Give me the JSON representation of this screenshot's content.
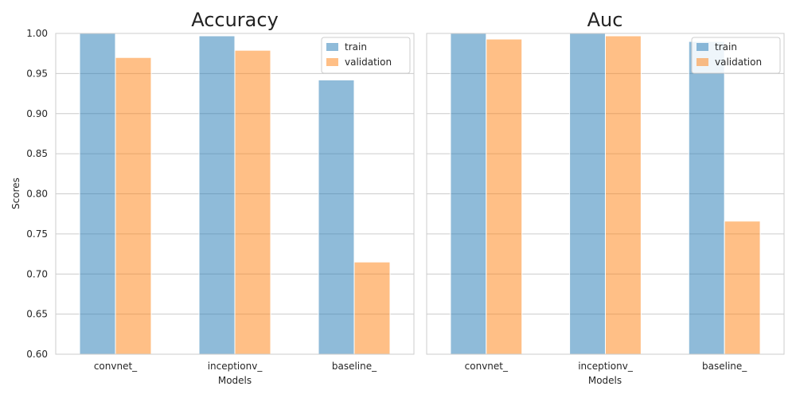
{
  "chart_data": [
    {
      "type": "bar",
      "title": "Accuracy",
      "xlabel": "Models",
      "ylabel": "Scores",
      "categories": [
        "convnet_",
        "inceptionv_",
        "baseline_"
      ],
      "ylim": [
        0.6,
        1.0
      ],
      "yticks": [
        "0.60",
        "0.65",
        "0.70",
        "0.75",
        "0.80",
        "0.85",
        "0.90",
        "0.95",
        "1.00"
      ],
      "series": [
        {
          "name": "train",
          "values": [
            1.0,
            0.997,
            0.942
          ]
        },
        {
          "name": "validation",
          "values": [
            0.97,
            0.979,
            0.715
          ]
        }
      ],
      "grid": true,
      "legend": "top-right"
    },
    {
      "type": "bar",
      "title": "Auc",
      "xlabel": "Models",
      "ylabel": "",
      "categories": [
        "convnet_",
        "inceptionv_",
        "baseline_"
      ],
      "ylim": [
        0.6,
        1.0
      ],
      "series": [
        {
          "name": "train",
          "values": [
            1.0,
            1.0,
            0.99
          ]
        },
        {
          "name": "validation",
          "values": [
            0.993,
            0.997,
            0.766
          ]
        }
      ],
      "grid": true,
      "legend": "top-right"
    }
  ],
  "colors": {
    "train": "#1f77b4",
    "validation": "#ff7f0e",
    "grid": "#cccccc",
    "frame": "#cccccc"
  }
}
